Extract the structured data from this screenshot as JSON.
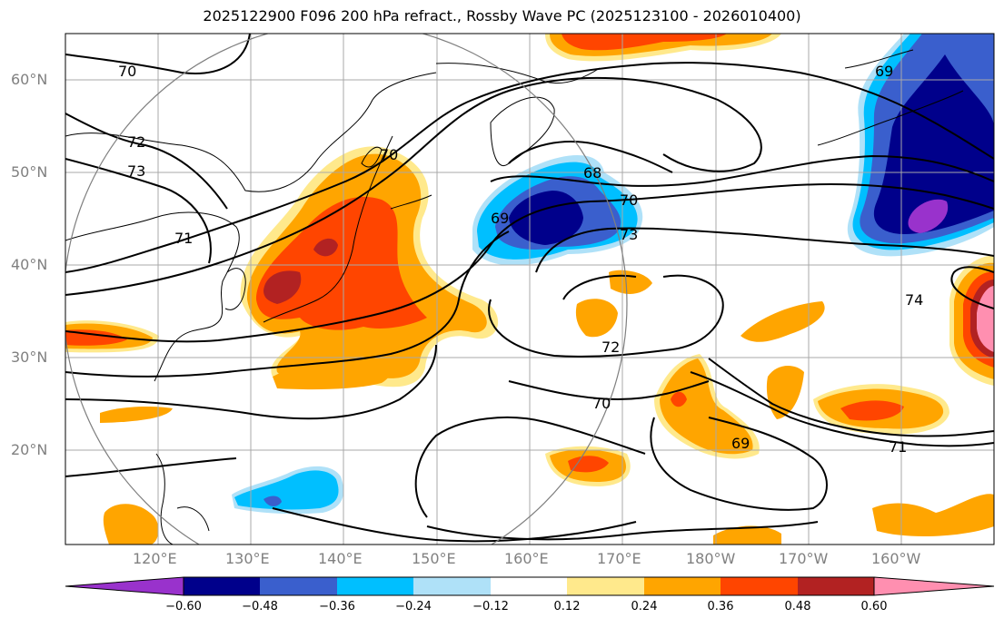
{
  "title": "2025122900 F096 200 hPa refract., Rossby Wave PC (2025123100 - 2026010400)",
  "lat_labels": [
    "60°N",
    "50°N",
    "40°N",
    "30°N",
    "20°N"
  ],
  "lon_labels": [
    "120°E",
    "130°E",
    "140°E",
    "150°E",
    "160°E",
    "170°E",
    "180°W",
    "170°W",
    "160°W"
  ],
  "contour_labels": [
    "70",
    "72",
    "73",
    "71",
    "70",
    "68",
    "69",
    "70",
    "73",
    "69",
    "72",
    "70",
    "69",
    "71",
    "74"
  ],
  "colorbar": {
    "ticks": [
      "−0.60",
      "−0.48",
      "−0.36",
      "−0.24",
      "−0.12",
      "0.12",
      "0.24",
      "0.36",
      "0.48",
      "0.60"
    ],
    "colors": [
      "#9932cc",
      "#00008b",
      "#3a5fcd",
      "#00bfff",
      "#afe1f8",
      "#ffffff",
      "#ffe98c",
      "#ffa500",
      "#ff4500",
      "#b22222",
      "#ff8fb0"
    ]
  }
}
